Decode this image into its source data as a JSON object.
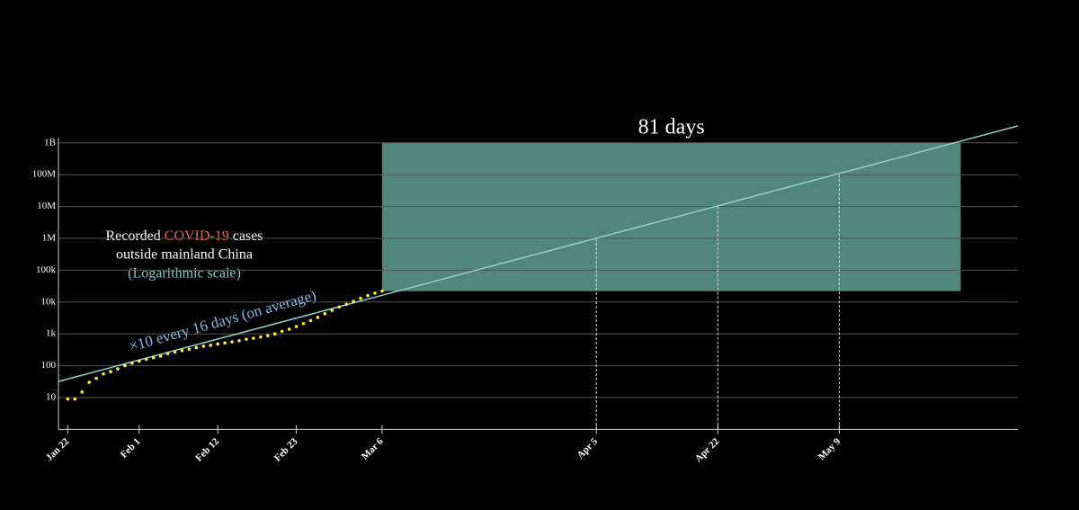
{
  "chart_data": {
    "type": "scatter",
    "title_parts": [
      "Recorded",
      "COVID-19",
      "cases",
      "outside mainland China",
      "(Logarithmic scale)"
    ],
    "annotation": "×10 every 16 days (on average)",
    "span_label": "81 days",
    "log_y": true,
    "grid": true,
    "x": [
      0,
      1,
      2,
      3,
      4,
      5,
      6,
      7,
      8,
      9,
      10,
      11,
      12,
      13,
      14,
      15,
      16,
      17,
      18,
      19,
      20,
      21,
      22,
      23,
      24,
      25,
      26,
      27,
      28,
      29,
      30,
      31,
      32,
      33,
      34,
      35,
      36,
      37,
      38,
      39,
      40,
      41,
      42,
      43,
      44
    ],
    "series": [
      {
        "color": "#ffeb3b",
        "values": [
          9,
          9,
          15,
          30,
          40,
          55,
          65,
          80,
          100,
          120,
          140,
          160,
          180,
          200,
          240,
          270,
          300,
          330,
          370,
          410,
          440,
          480,
          520,
          560,
          610,
          680,
          730,
          800,
          880,
          1000,
          1200,
          1400,
          1700,
          2100,
          2600,
          3300,
          4300,
          5500,
          7000,
          8500,
          10500,
          13000,
          16000,
          19000,
          22000
        ]
      }
    ],
    "trend": {
      "color": "#8fd1c8",
      "x": [
        -1.3,
        133
      ],
      "values": [
        32,
        3400000000
      ]
    },
    "highlight": {
      "color": "#5f9e8f",
      "x": [
        44,
        125
      ],
      "y": [
        22000,
        1000000000
      ]
    },
    "markers": {
      "x": [
        74,
        91,
        108
      ],
      "values": [
        1000000,
        10000000,
        100000000
      ]
    },
    "xlim": [
      -1.3,
      133
    ],
    "ylim": [
      1,
      10000000000
    ],
    "xticks": [
      {
        "value": 0,
        "label": "Jan 22"
      },
      {
        "value": 10,
        "label": "Feb 1"
      },
      {
        "value": 21,
        "label": "Feb 12"
      },
      {
        "value": 32,
        "label": "Feb 23"
      },
      {
        "value": 44,
        "label": "Mar 6"
      },
      {
        "value": 74,
        "label": "Apr 5"
      },
      {
        "value": 91,
        "label": "Apr 22"
      },
      {
        "value": 108,
        "label": "May 9"
      }
    ],
    "yticks": [
      10,
      100,
      {
        "value": 1000,
        "label": "1k"
      },
      {
        "value": 10000,
        "label": "10k"
      },
      {
        "value": 100000,
        "label": "100k"
      },
      {
        "value": 1000000,
        "label": "1M"
      },
      {
        "value": 10000000,
        "label": "10M"
      },
      {
        "value": 100000000,
        "label": "100M"
      },
      {
        "value": 1000000000,
        "label": "1B"
      }
    ]
  }
}
